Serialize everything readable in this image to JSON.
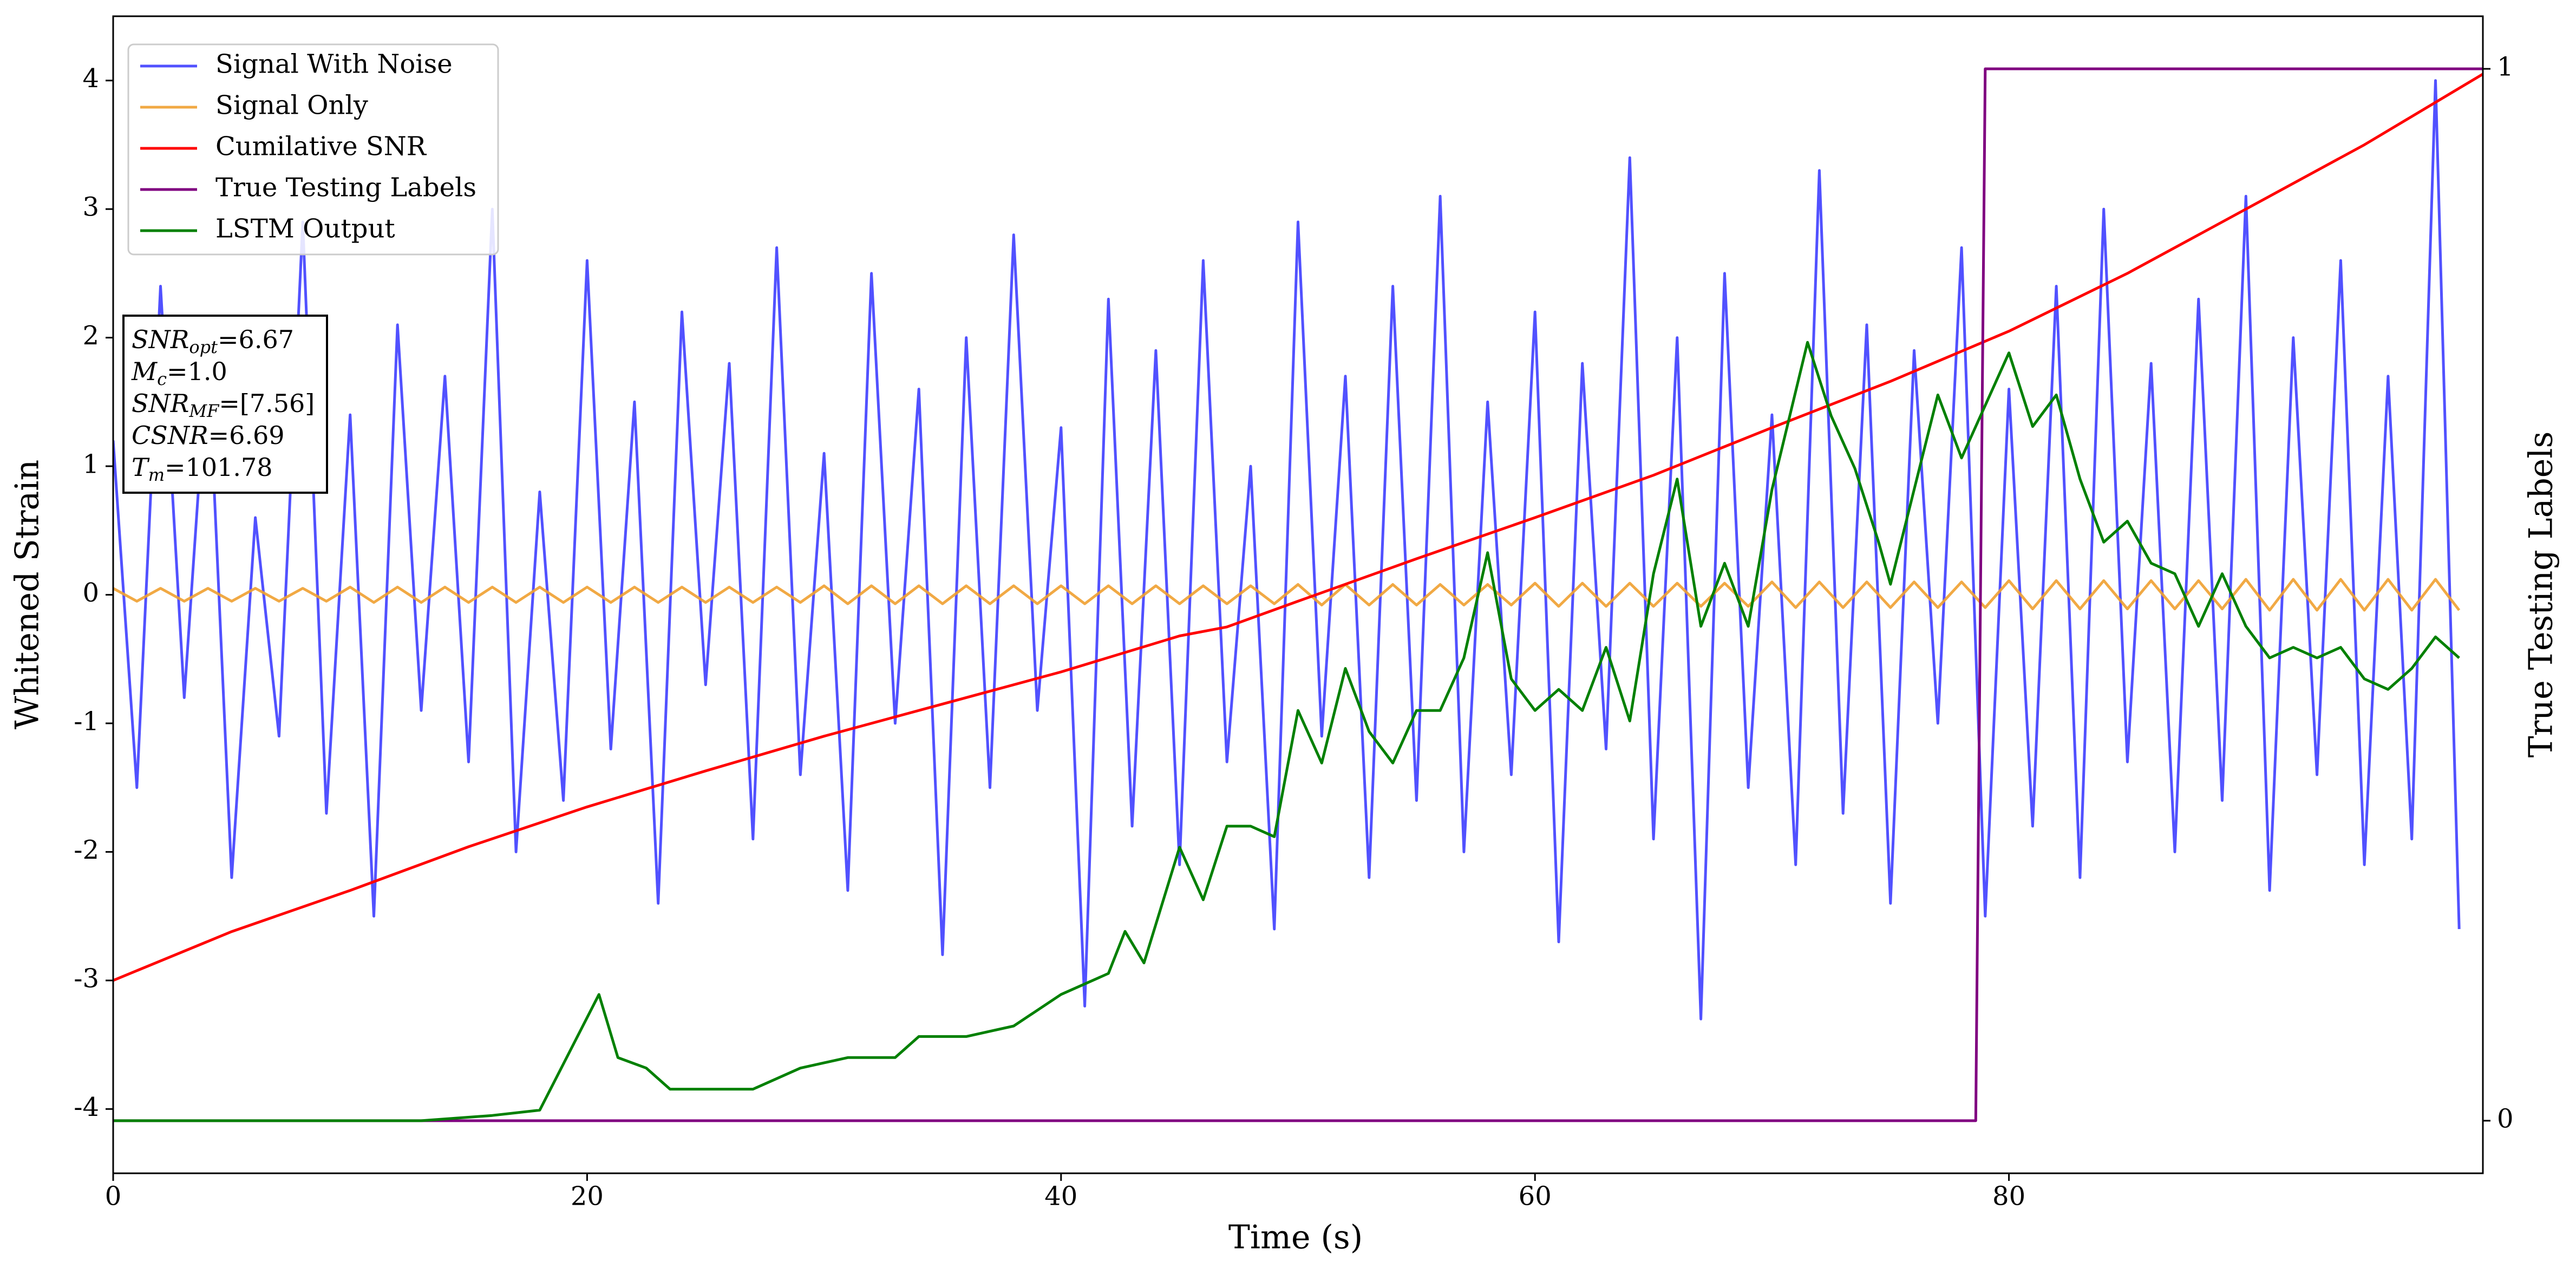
{
  "chart_data": {
    "type": "line",
    "x_label": "Time (s)",
    "y_label": "Whitened Strain",
    "y2_label": "True Testing Labels",
    "xlim": [
      0,
      100
    ],
    "xticks": [
      0,
      20,
      40,
      60,
      80
    ],
    "ylim": [
      -4.5,
      4.5
    ],
    "yticks": [
      -4,
      -3,
      -2,
      -1,
      0,
      1,
      2,
      3,
      4
    ],
    "y2lim": [
      -0.05,
      1.05
    ],
    "y2ticks": [
      0,
      1
    ],
    "legend": "upper left",
    "x": [
      0,
      1,
      2,
      3,
      4,
      5,
      6,
      7,
      8,
      9,
      10,
      11,
      12,
      13,
      14,
      15,
      16,
      17,
      18,
      19,
      20,
      21,
      22,
      23,
      24,
      25,
      26,
      27,
      28,
      29,
      30,
      31,
      32,
      33,
      34,
      35,
      36,
      37,
      38,
      39,
      40,
      41,
      42,
      43,
      44,
      45,
      46,
      47,
      48,
      49,
      50,
      51,
      52,
      53,
      54,
      55,
      56,
      57,
      58,
      59,
      60,
      61,
      62,
      63,
      64,
      65,
      66,
      67,
      68,
      69,
      70,
      71,
      72,
      73,
      74,
      75,
      76,
      77,
      78,
      79,
      80,
      81,
      82,
      83,
      84,
      85,
      86,
      87,
      88,
      89,
      90,
      91,
      92,
      93,
      94,
      95,
      96,
      97,
      98,
      99
    ],
    "series": [
      {
        "name": "Signal With Noise",
        "color": "#3333ff",
        "opacity": 0.85,
        "values": [
          1.2,
          -1.5,
          2.4,
          -0.8,
          1.9,
          -2.2,
          0.6,
          -1.1,
          2.9,
          -1.7,
          1.4,
          -2.5,
          2.1,
          -0.9,
          1.7,
          -1.3,
          3.0,
          -2.0,
          0.8,
          -1.6,
          2.6,
          -1.2,
          1.5,
          -2.4,
          2.2,
          -0.7,
          1.8,
          -1.9,
          2.7,
          -1.4,
          1.1,
          -2.3,
          2.5,
          -1.0,
          1.6,
          -2.8,
          2.0,
          -1.5,
          2.8,
          -0.9,
          1.3,
          -3.2,
          2.3,
          -1.8,
          1.9,
          -2.1,
          2.6,
          -1.3,
          1.0,
          -2.6,
          2.9,
          -1.1,
          1.7,
          -2.2,
          2.4,
          -1.6,
          3.1,
          -2.0,
          1.5,
          -1.4,
          2.2,
          -2.7,
          1.8,
          -1.2,
          3.4,
          -1.9,
          2.0,
          -3.3,
          2.5,
          -1.5,
          1.4,
          -2.1,
          3.3,
          -1.7,
          2.1,
          -2.4,
          1.9,
          -1.0,
          2.7,
          -2.5,
          1.6,
          -1.8,
          2.4,
          -2.2,
          3.0,
          -1.3,
          1.8,
          -2.0,
          2.3,
          -1.6,
          3.1,
          -2.3,
          2.0,
          -1.4,
          2.6,
          -2.1,
          1.7,
          -1.9,
          4.0,
          -2.6
        ]
      },
      {
        "name": "Signal Only",
        "color": "#f0a030",
        "opacity": 0.9,
        "values": [
          0.05,
          -0.05,
          0.05,
          -0.05,
          0.05,
          -0.05,
          0.05,
          -0.05,
          0.05,
          -0.05,
          0.06,
          -0.06,
          0.06,
          -0.06,
          0.06,
          -0.06,
          0.06,
          -0.06,
          0.06,
          -0.06,
          0.06,
          -0.06,
          0.06,
          -0.06,
          0.06,
          -0.06,
          0.06,
          -0.06,
          0.06,
          -0.06,
          0.07,
          -0.07,
          0.07,
          -0.07,
          0.07,
          -0.07,
          0.07,
          -0.07,
          0.07,
          -0.07,
          0.07,
          -0.07,
          0.07,
          -0.07,
          0.07,
          -0.07,
          0.07,
          -0.07,
          0.07,
          -0.07,
          0.08,
          -0.08,
          0.08,
          -0.08,
          0.08,
          -0.08,
          0.08,
          -0.08,
          0.08,
          -0.08,
          0.09,
          -0.09,
          0.09,
          -0.09,
          0.09,
          -0.09,
          0.09,
          -0.09,
          0.09,
          -0.09,
          0.1,
          -0.1,
          0.1,
          -0.1,
          0.1,
          -0.1,
          0.1,
          -0.1,
          0.1,
          -0.1,
          0.11,
          -0.11,
          0.11,
          -0.11,
          0.11,
          -0.11,
          0.11,
          -0.11,
          0.11,
          -0.11,
          0.12,
          -0.12,
          0.12,
          -0.12,
          0.12,
          -0.12,
          0.12,
          -0.12,
          0.12,
          -0.12
        ]
      },
      {
        "name": "Cumilative SNR",
        "color": "red",
        "opacity": 1,
        "x": [
          0,
          5,
          10,
          15,
          20,
          25,
          30,
          35,
          40,
          45,
          47,
          50,
          55,
          60,
          65,
          70,
          75,
          80,
          85,
          90,
          95,
          100
        ],
        "values": [
          -3.0,
          -2.62,
          -2.3,
          -1.96,
          -1.65,
          -1.37,
          -1.1,
          -0.85,
          -0.6,
          -0.32,
          -0.25,
          -0.05,
          0.28,
          0.6,
          0.93,
          1.3,
          1.66,
          2.05,
          2.5,
          3.0,
          3.5,
          4.05
        ]
      },
      {
        "name": "True Testing Labels",
        "color": "purple",
        "opacity": 1,
        "axis": "y2",
        "x": [
          0,
          78.6,
          79.0,
          100
        ],
        "values": [
          0,
          0,
          1,
          1
        ]
      },
      {
        "name": "LSTM Output",
        "color": "green",
        "opacity": 1,
        "axis": "y2",
        "x": [
          0,
          13,
          16,
          18,
          20.5,
          21.3,
          22.5,
          23.5,
          25,
          27,
          29,
          31,
          33,
          34,
          36,
          38,
          40,
          42,
          42.7,
          43.5,
          45,
          46,
          47,
          48,
          49,
          50,
          51,
          52,
          53,
          54,
          55,
          56,
          57,
          58,
          59,
          60,
          61,
          62,
          63,
          64,
          65,
          66,
          67,
          68,
          69,
          70,
          71.5,
          72.5,
          73.5,
          74.5,
          75,
          76,
          77,
          78,
          79,
          80,
          81,
          82,
          83,
          84,
          85,
          86,
          87,
          88,
          89,
          90,
          91,
          92,
          93,
          94,
          95,
          96,
          97,
          98,
          99
        ],
        "values": [
          0,
          0,
          0.005,
          0.01,
          0.12,
          0.06,
          0.05,
          0.03,
          0.03,
          0.03,
          0.05,
          0.06,
          0.06,
          0.08,
          0.08,
          0.09,
          0.12,
          0.14,
          0.18,
          0.15,
          0.26,
          0.21,
          0.28,
          0.28,
          0.27,
          0.39,
          0.34,
          0.43,
          0.37,
          0.34,
          0.39,
          0.39,
          0.44,
          0.54,
          0.42,
          0.39,
          0.41,
          0.39,
          0.45,
          0.38,
          0.52,
          0.61,
          0.47,
          0.53,
          0.47,
          0.6,
          0.74,
          0.67,
          0.62,
          0.55,
          0.51,
          0.6,
          0.69,
          0.63,
          0.68,
          0.73,
          0.66,
          0.69,
          0.61,
          0.55,
          0.57,
          0.53,
          0.52,
          0.47,
          0.52,
          0.47,
          0.44,
          0.45,
          0.44,
          0.45,
          0.42,
          0.41,
          0.43,
          0.46,
          0.44
        ]
      }
    ],
    "annotations": [
      {
        "main": "SNR",
        "sub": "opt",
        "rest": "=6.67"
      },
      {
        "main": "M",
        "sub": "c",
        "rest": "=1.0"
      },
      {
        "main": "SNR",
        "sub": "MF",
        "rest": "=[7.56]"
      },
      {
        "main": "CSNR",
        "sub": "",
        "rest": "=6.69"
      },
      {
        "main": "T",
        "sub": "m",
        "rest": "=101.78"
      }
    ]
  }
}
